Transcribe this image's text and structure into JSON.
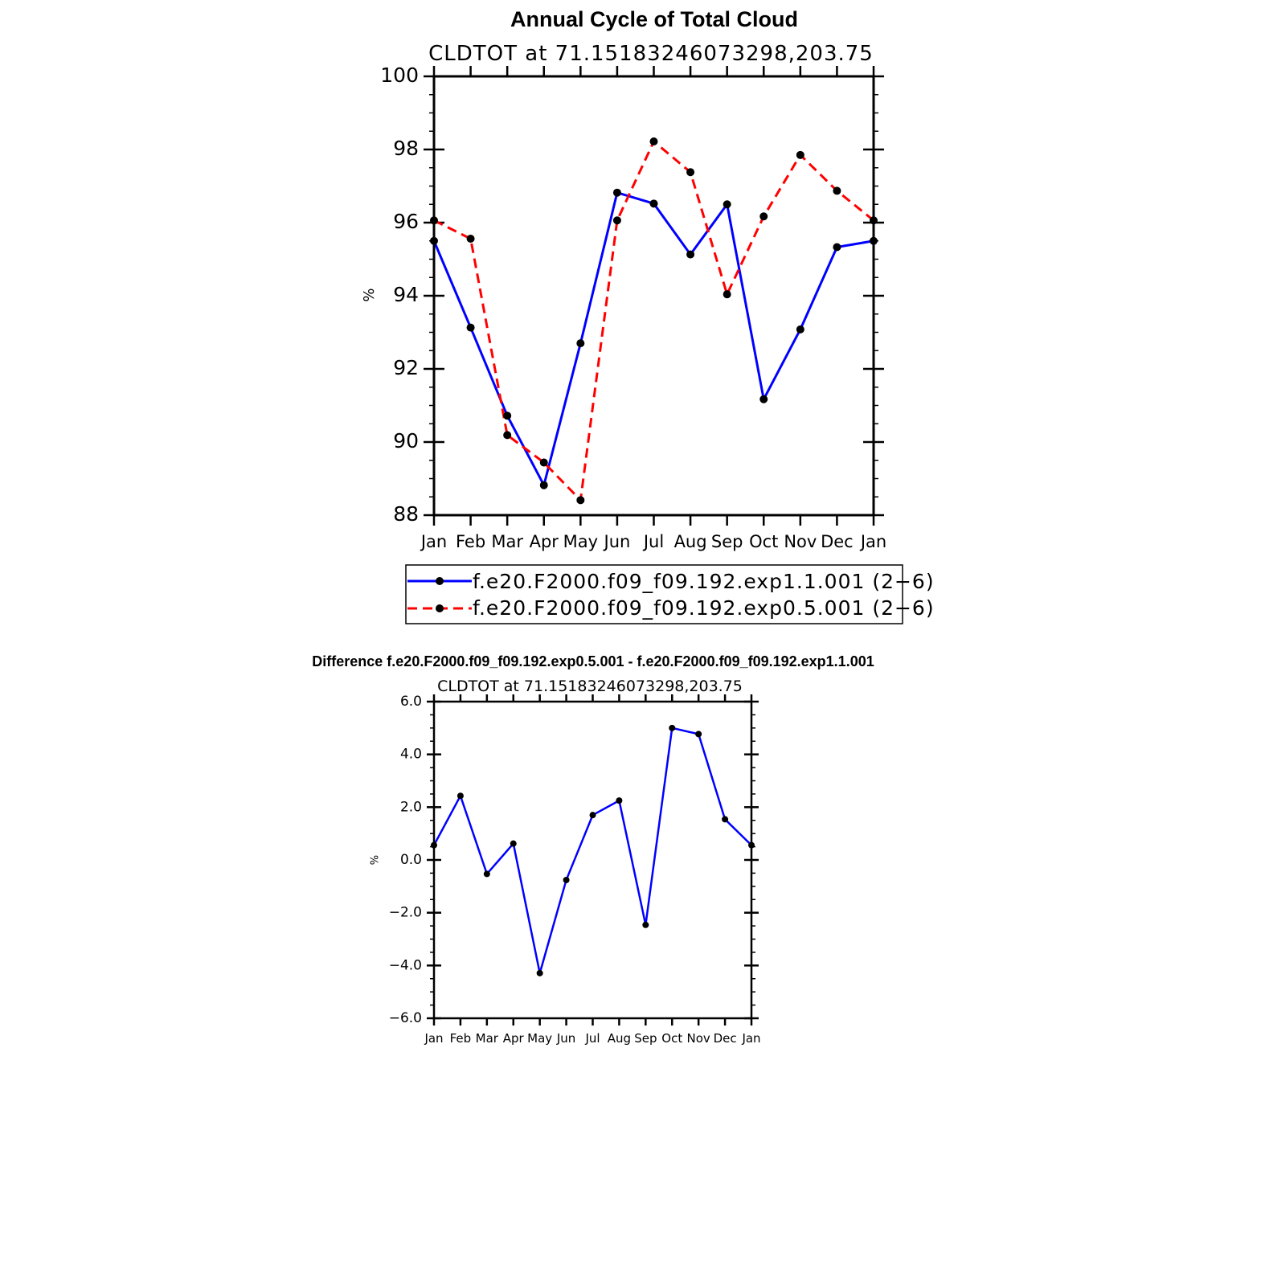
{
  "chart_data": [
    {
      "type": "line",
      "title": "Annual Cycle of Total Cloud",
      "subtitle": "CLDTOT at 71.15183246073298,203.75",
      "xlabel": "",
      "ylabel": "%",
      "categories": [
        "Jan",
        "Feb",
        "Mar",
        "Apr",
        "May",
        "Jun",
        "Jul",
        "Aug",
        "Sep",
        "Oct",
        "Nov",
        "Dec",
        "Jan"
      ],
      "ylim": [
        88,
        100
      ],
      "yticks": [
        "88",
        "90",
        "92",
        "94",
        "96",
        "98",
        "100"
      ],
      "legend_position": "bottom",
      "series": [
        {
          "name": "f.e20.F2000.f09_f09.192.exp1.1.001 (2−6)",
          "color": "#0000ff",
          "dash": "solid",
          "values": [
            95.5,
            93.13,
            90.72,
            88.82,
            92.7,
            96.82,
            96.52,
            95.13,
            96.5,
            91.17,
            93.08,
            95.33,
            95.5
          ]
        },
        {
          "name": "f.e20.F2000.f09_f09.192.exp0.5.001 (2−6)",
          "color": "#ff0000",
          "dash": "dashed",
          "values": [
            96.06,
            95.56,
            90.19,
            89.44,
            88.41,
            96.06,
            98.22,
            97.38,
            94.04,
            96.17,
            97.85,
            96.87,
            96.06
          ]
        }
      ]
    },
    {
      "type": "line",
      "title": "Difference f.e20.F2000.f09_f09.192.exp0.5.001 - f.e20.F2000.f09_f09.192.exp1.1.001",
      "subtitle": "CLDTOT at 71.15183246073298,203.75",
      "xlabel": "",
      "ylabel": "%",
      "categories": [
        "Jan",
        "Feb",
        "Mar",
        "Apr",
        "May",
        "Jun",
        "Jul",
        "Aug",
        "Sep",
        "Oct",
        "Nov",
        "Dec",
        "Jan"
      ],
      "ylim": [
        -6,
        6
      ],
      "yticks": [
        "−6.0",
        "−4.0",
        "−2.0",
        "0.0",
        "2.0",
        "4.0",
        "6.0"
      ],
      "series": [
        {
          "name": "",
          "color": "#0000ff",
          "dash": "solid",
          "values": [
            0.56,
            2.43,
            -0.53,
            0.62,
            -4.29,
            -0.76,
            1.7,
            2.25,
            -2.46,
            5.0,
            4.77,
            1.54,
            0.56
          ]
        }
      ]
    }
  ]
}
